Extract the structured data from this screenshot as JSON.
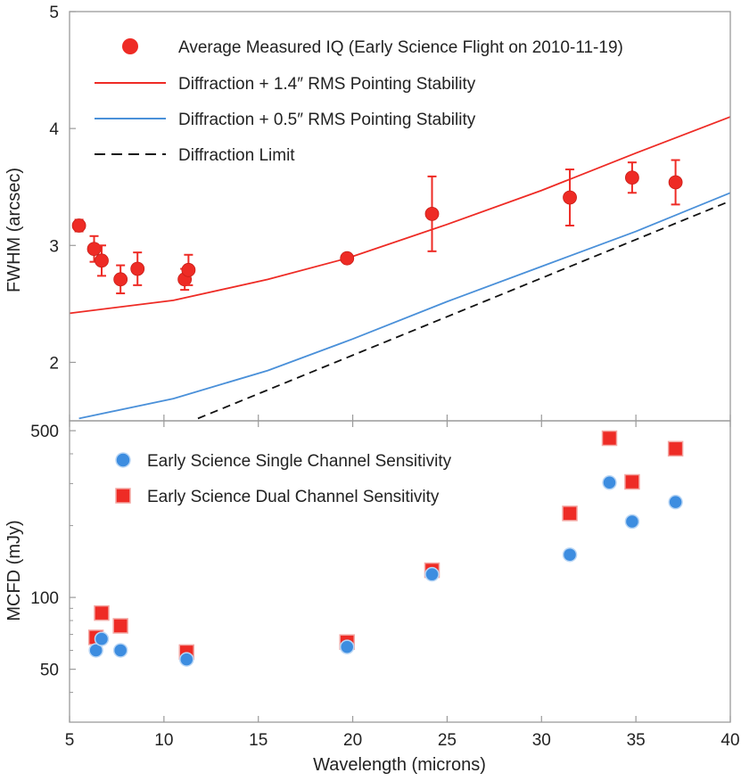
{
  "chart_data": [
    {
      "type": "scatter",
      "panel": "top",
      "ylabel": "FWHM (arcsec)",
      "xlim": [
        5,
        40
      ],
      "ylim": [
        1.5,
        5
      ],
      "y_ticks": [
        2,
        3,
        4,
        5
      ],
      "y_tick_labels": [
        "2",
        "3",
        "4",
        "5"
      ],
      "legend_position": "top",
      "series": [
        {
          "name": "Average Measured IQ (Early Science Flight on 2010-11-19)",
          "kind": "points_with_errorbars",
          "color": "#ee2b25",
          "points": [
            {
              "x": 5.5,
              "y": 3.17,
              "err": 0.05
            },
            {
              "x": 6.3,
              "y": 2.97,
              "err": 0.11
            },
            {
              "x": 6.7,
              "y": 2.87,
              "err": 0.13
            },
            {
              "x": 7.7,
              "y": 2.71,
              "err": 0.12
            },
            {
              "x": 8.6,
              "y": 2.8,
              "err": 0.14
            },
            {
              "x": 11.1,
              "y": 2.71,
              "err": 0.09
            },
            {
              "x": 11.3,
              "y": 2.79,
              "err": 0.13
            },
            {
              "x": 19.7,
              "y": 2.89,
              "err": 0.03
            },
            {
              "x": 24.2,
              "y": 3.27,
              "err": 0.32
            },
            {
              "x": 31.5,
              "y": 3.41,
              "err": 0.24
            },
            {
              "x": 34.8,
              "y": 3.58,
              "err": 0.13
            },
            {
              "x": 37.1,
              "y": 3.54,
              "err": 0.19
            }
          ]
        },
        {
          "name": "Diffraction + 1.4″ RMS Pointing Stability",
          "kind": "line",
          "color": "#ee2b25",
          "x": [
            5,
            10.5,
            15.5,
            19.7,
            25,
            30,
            35,
            40
          ],
          "y": [
            2.42,
            2.53,
            2.71,
            2.89,
            3.18,
            3.47,
            3.79,
            4.1
          ]
        },
        {
          "name": "Diffraction + 0.5″ RMS Pointing Stability",
          "kind": "line",
          "color": "#4a90d9",
          "x": [
            5.5,
            10.5,
            15.5,
            20,
            25,
            30,
            35,
            40
          ],
          "y": [
            1.52,
            1.69,
            1.93,
            2.2,
            2.52,
            2.82,
            3.12,
            3.45
          ]
        },
        {
          "name": "Diffraction Limit",
          "kind": "dashed_line",
          "color": "#111111",
          "x": [
            11.8,
            40
          ],
          "y": [
            1.52,
            3.38
          ]
        }
      ]
    },
    {
      "type": "scatter",
      "panel": "bottom",
      "xlabel": "Wavelength (microns)",
      "ylabel": "MCFD (mJy)",
      "xlim": [
        5,
        40
      ],
      "ylim": [
        30,
        550
      ],
      "y_scale": "log",
      "x_ticks": [
        5,
        10,
        15,
        20,
        25,
        30,
        35,
        40
      ],
      "x_tick_labels": [
        "5",
        "10",
        "15",
        "20",
        "25",
        "30",
        "35",
        "40"
      ],
      "y_ticks": [
        50,
        100,
        500
      ],
      "y_tick_labels": [
        "50",
        "100",
        "500"
      ],
      "legend_position": "top-left",
      "series": [
        {
          "name": "Early Science Single Channel Sensitivity",
          "marker": "circle",
          "color": "#3d8de0",
          "points": [
            {
              "x": 6.4,
              "y": 60
            },
            {
              "x": 6.7,
              "y": 67
            },
            {
              "x": 7.7,
              "y": 60
            },
            {
              "x": 11.2,
              "y": 55
            },
            {
              "x": 19.7,
              "y": 62
            },
            {
              "x": 24.2,
              "y": 125
            },
            {
              "x": 31.5,
              "y": 151
            },
            {
              "x": 33.6,
              "y": 303
            },
            {
              "x": 34.8,
              "y": 208
            },
            {
              "x": 37.1,
              "y": 251
            }
          ]
        },
        {
          "name": "Early Science Dual Channel Sensitivity",
          "marker": "square",
          "color": "#ee2b25",
          "points": [
            {
              "x": 6.4,
              "y": 68
            },
            {
              "x": 6.7,
              "y": 86
            },
            {
              "x": 7.7,
              "y": 76
            },
            {
              "x": 11.2,
              "y": 59
            },
            {
              "x": 19.7,
              "y": 65
            },
            {
              "x": 24.2,
              "y": 130
            },
            {
              "x": 31.5,
              "y": 225
            },
            {
              "x": 33.6,
              "y": 465
            },
            {
              "x": 34.8,
              "y": 305
            },
            {
              "x": 37.1,
              "y": 420
            }
          ]
        }
      ]
    }
  ]
}
